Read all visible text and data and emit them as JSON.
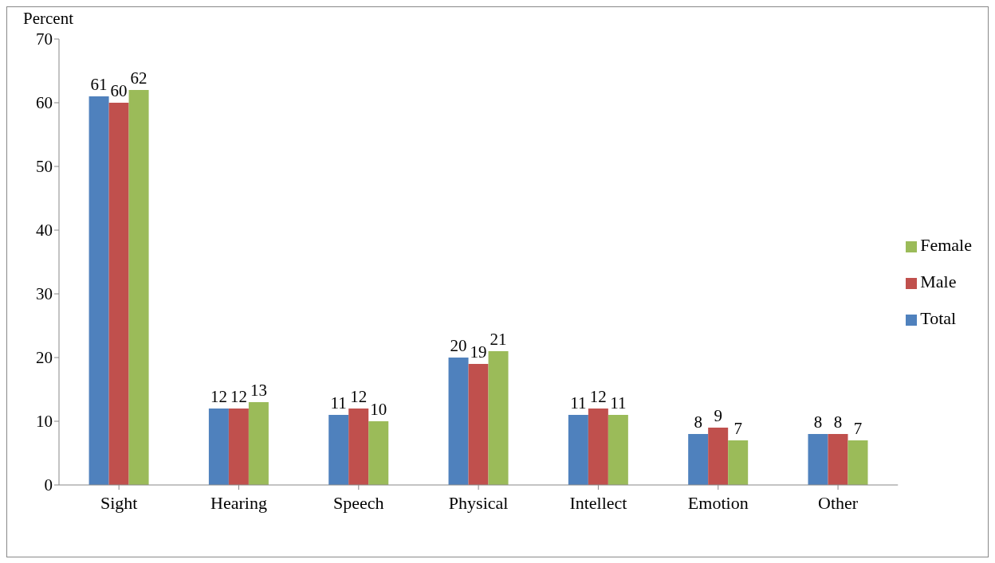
{
  "chart_data": {
    "type": "bar",
    "ylabel": "Percent",
    "categories": [
      "Sight",
      "Hearing",
      "Speech",
      "Physical",
      "Intellect",
      "Emotion",
      "Other"
    ],
    "series": [
      {
        "name": "Total",
        "color": "#4f81bd",
        "values": [
          61,
          12,
          11,
          20,
          11,
          8,
          8
        ]
      },
      {
        "name": "Male",
        "color": "#c0504d",
        "values": [
          60,
          12,
          12,
          19,
          12,
          9,
          8
        ]
      },
      {
        "name": "Female",
        "color": "#9bbb59",
        "values": [
          62,
          13,
          10,
          21,
          11,
          7,
          7
        ]
      }
    ],
    "ylim": [
      0,
      70
    ],
    "yticks": [
      0,
      10,
      20,
      30,
      40,
      50,
      60,
      70
    ],
    "grid": false,
    "legend": "right",
    "data_labels": true
  }
}
